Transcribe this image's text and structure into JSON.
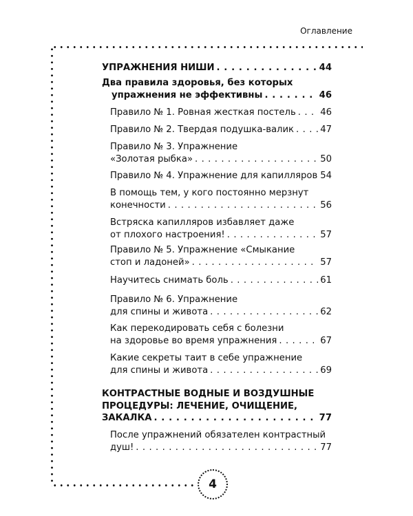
{
  "header": {
    "title": "Оглавление"
  },
  "page_number": "4",
  "toc": [
    {
      "lines": [
        "УПРАЖНЕНИЯ НИШИ"
      ],
      "page": "44",
      "level": "bold"
    },
    {
      "lines": [
        "Два правила здоровья, без которых",
        "упражнения не эффективны"
      ],
      "page": "46",
      "level": "bold"
    },
    {
      "lines": [
        "Правило № 1. Ровная жесткая постель"
      ],
      "page": "46",
      "level": "sub"
    },
    {
      "lines": [
        "Правило № 2. Твердая подушка-валик"
      ],
      "page": "47",
      "level": "sub"
    },
    {
      "lines": [
        "Правило № 3. Упражнение",
        "«Золотая рыбка»"
      ],
      "page": "50",
      "level": "sub"
    },
    {
      "lines": [
        "Правило № 4. Упражнение для капилляров"
      ],
      "page": "54",
      "level": "sub",
      "no_leader": true
    },
    {
      "lines": [
        "В помощь тем, у кого постоянно мерзнут",
        "конечности"
      ],
      "page": "56",
      "level": "sub"
    },
    {
      "lines": [
        "Встряска капилляров избавляет даже",
        "от плохого настроения!"
      ],
      "page": "57",
      "level": "sub"
    },
    {
      "lines": [
        "Правило № 5. Упражнение «Смыкание",
        "стоп и ладоней»"
      ],
      "page": "57",
      "level": "sub"
    },
    {
      "lines": [
        "Научитесь снимать боль"
      ],
      "page": "61",
      "level": "sub"
    },
    {
      "lines": [
        "Правило № 6. Упражнение",
        "для спины и живота"
      ],
      "page": "62",
      "level": "sub"
    },
    {
      "lines": [
        "Как перекодировать себя с болезни",
        "на здоровье во время упражнения"
      ],
      "page": "67",
      "level": "sub"
    },
    {
      "lines": [
        "Какие секреты таит в себе упражнение",
        "для спины и живота"
      ],
      "page": "69",
      "level": "sub"
    },
    {
      "lines": [
        "КОНТРАСТНЫЕ ВОДНЫЕ И ВОЗДУШНЫЕ",
        "ПРОЦЕДУРЫ: ЛЕЧЕНИЕ, ОЧИЩЕНИЕ,",
        "ЗАКАЛКА"
      ],
      "page": "77",
      "level": "bold"
    },
    {
      "lines": [
        "После упражнений обязателен контрастный",
        "душ!"
      ],
      "page": "77",
      "level": "sub"
    }
  ]
}
